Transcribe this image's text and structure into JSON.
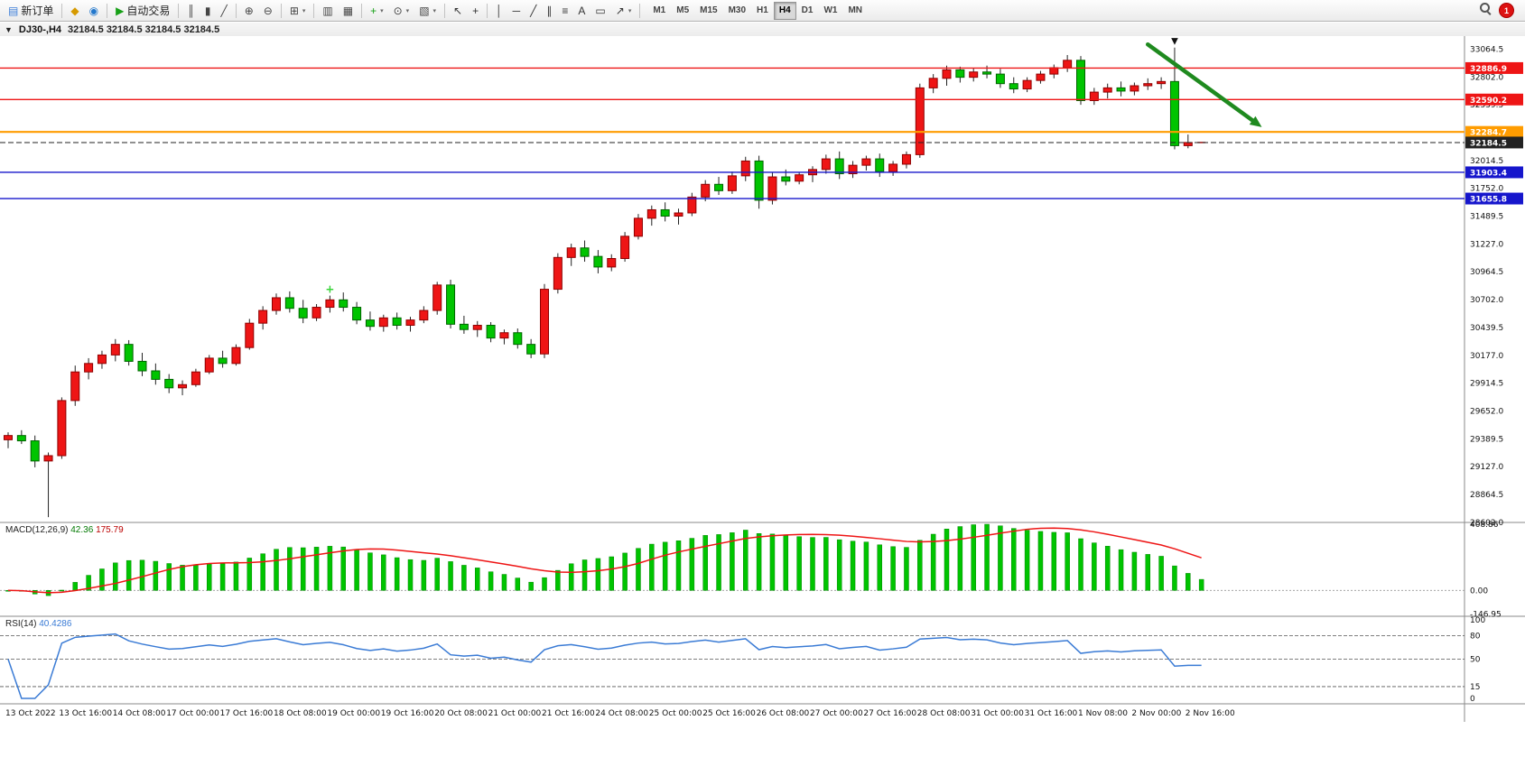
{
  "toolbar": {
    "left_items": [
      {
        "name": "new-order-button",
        "icon": "order-ticket-icon",
        "glyph": "▤",
        "glyph_color": "#3b7dd8",
        "label": "新订单"
      },
      {
        "sep": true
      },
      {
        "name": "alerts-button",
        "icon": "alert-icon",
        "glyph": "◆",
        "glyph_color": "#d69a00"
      },
      {
        "name": "community-button",
        "icon": "community-icon",
        "glyph": "◉",
        "glyph_color": "#2277cc"
      },
      {
        "sep": true
      },
      {
        "name": "autotrading-button",
        "icon": "play-icon",
        "glyph": "▶",
        "glyph_color": "#17a017",
        "label": "自动交易"
      },
      {
        "sep": true
      },
      {
        "name": "bar-chart-button",
        "icon": "bar-chart-icon",
        "glyph": "║",
        "glyph_color": "#444444"
      },
      {
        "name": "candlestick-chart-button",
        "icon": "candlestick-icon",
        "glyph": "▮",
        "glyph_color": "#444444"
      },
      {
        "name": "line-chart-button",
        "icon": "line-chart-icon",
        "glyph": "╱",
        "glyph_color": "#444444"
      },
      {
        "sep": true
      },
      {
        "name": "zoom-in-button",
        "icon": "zoom-in-icon",
        "glyph": "⊕",
        "glyph_color": "#444444"
      },
      {
        "name": "zoom-out-button",
        "icon": "zoom-out-icon",
        "glyph": "⊖",
        "glyph_color": "#444444"
      },
      {
        "sep": true
      },
      {
        "name": "tile-windows-button",
        "icon": "tile-windows-icon",
        "glyph": "⊞",
        "glyph_color": "#444444",
        "caret": true
      },
      {
        "sep": true
      },
      {
        "name": "arrange-charts-button",
        "icon": "arrange-icon",
        "glyph": "▥",
        "glyph_color": "#444444"
      },
      {
        "name": "cascade-charts-button",
        "icon": "cascade-icon",
        "glyph": "▦",
        "glyph_color": "#444444"
      },
      {
        "sep": true
      },
      {
        "name": "indicators-button",
        "icon": "indicator-plus-icon",
        "glyph": "+",
        "glyph_color": "#17a017",
        "caret": true
      },
      {
        "name": "periods-button",
        "icon": "clock-icon",
        "glyph": "⊙",
        "glyph_color": "#444444",
        "caret": true
      },
      {
        "name": "templates-button",
        "icon": "template-icon",
        "glyph": "▧",
        "glyph_color": "#444444",
        "caret": true
      },
      {
        "sep": true
      },
      {
        "name": "cursor-button",
        "icon": "cursor-icon",
        "glyph": "↖",
        "glyph_color": "#333333"
      },
      {
        "name": "crosshair-button",
        "icon": "crosshair-icon",
        "glyph": "+",
        "glyph_color": "#333333"
      },
      {
        "sep": true
      },
      {
        "name": "vertical-line-button",
        "icon": "vline-icon",
        "glyph": "│",
        "glyph_color": "#333333"
      },
      {
        "name": "horizontal-line-button",
        "icon": "hline-icon",
        "glyph": "─",
        "glyph_color": "#333333"
      },
      {
        "name": "trendline-button",
        "icon": "trendline-icon",
        "glyph": "╱",
        "glyph_color": "#333333"
      },
      {
        "name": "channel-button",
        "icon": "channel-icon",
        "glyph": "∥",
        "glyph_color": "#333333"
      },
      {
        "name": "fibonacci-button",
        "icon": "fibonacci-icon",
        "glyph": "≡",
        "glyph_color": "#333333"
      },
      {
        "name": "text-button",
        "icon": "text-icon",
        "glyph": "A",
        "glyph_color": "#333333"
      },
      {
        "name": "text-label-button",
        "icon": "text-label-icon",
        "glyph": "▭",
        "glyph_color": "#333333"
      },
      {
        "name": "arrows-button",
        "icon": "arrow-objects-icon",
        "glyph": "↗",
        "glyph_color": "#333333",
        "caret": true
      },
      {
        "sep": true
      }
    ],
    "timeframes": [
      "M1",
      "M5",
      "M15",
      "M30",
      "H1",
      "H4",
      "D1",
      "W1",
      "MN"
    ],
    "active_timeframe": "H4",
    "notification_count": "1"
  },
  "chart": {
    "title": {
      "one_click_glyph": "▼",
      "symbol_period": "DJ30-,H4",
      "ohlc": "32184.5 32184.5 32184.5 32184.5"
    },
    "colors": {
      "up": "#ee1515",
      "up_border": "#8e0000",
      "down": "#00c400",
      "down_border": "#006400",
      "wick": "#222222"
    },
    "price_axis": {
      "range_max": 33180,
      "range_min": 28600,
      "labels": [
        "33064.5",
        "32802.0",
        "32539.5",
        "32277.0",
        "32014.5",
        "31752.0",
        "31489.5",
        "31227.0",
        "30964.5",
        "30702.0",
        "30439.5",
        "30177.0",
        "29914.5",
        "29652.0",
        "29389.5",
        "29127.0",
        "28864.5",
        "28602.0"
      ]
    },
    "levels": [
      {
        "name": "resistance-line-upper",
        "price": 32886.9,
        "label": "32886.9",
        "color": "#ee1515",
        "width": 1.4
      },
      {
        "name": "resistance-line-lower",
        "price": 32590.2,
        "label": "32590.2",
        "color": "#ee1515",
        "width": 1.4
      },
      {
        "name": "pivot-line-orange",
        "price": 32284.7,
        "label": "32284.7",
        "color": "#ff9c00",
        "width": 2.2
      },
      {
        "name": "current-price-line",
        "price": 32184.5,
        "label": "32184.5",
        "color": "#222222",
        "width": 1,
        "dashed": true
      },
      {
        "name": "support-line-upper",
        "price": 31903.4,
        "label": "31903.4",
        "color": "#1616cc",
        "width": 1.4
      },
      {
        "name": "support-line-lower",
        "price": 31655.8,
        "label": "31655.8",
        "color": "#1616cc",
        "width": 1.4
      }
    ],
    "annotations": {
      "trend_arrow": {
        "from_candle": 85,
        "from_price": 33110,
        "to_candle": 93.5,
        "to_price": 32330,
        "color": "#1f8a1f"
      },
      "sell_marker": {
        "candle": 87,
        "price": 33150,
        "glyph": "▼",
        "color": "#111111"
      },
      "buy_marker": {
        "candle": 24,
        "price": 30800,
        "glyph": "+",
        "color": "#39d439"
      }
    }
  },
  "chart_data": {
    "type": "candlestick",
    "symbol": "DJ30-",
    "period": "H4",
    "candles": [
      [
        29380,
        29450,
        29300,
        29420
      ],
      [
        29420,
        29470,
        29340,
        29370
      ],
      [
        29370,
        29420,
        29120,
        29180
      ],
      [
        29180,
        29260,
        28650,
        29230
      ],
      [
        29230,
        29780,
        29200,
        29750
      ],
      [
        29750,
        30080,
        29700,
        30020
      ],
      [
        30020,
        30150,
        29950,
        30100
      ],
      [
        30100,
        30220,
        30050,
        30180
      ],
      [
        30180,
        30330,
        30120,
        30280
      ],
      [
        30280,
        30320,
        30080,
        30120
      ],
      [
        30120,
        30200,
        29980,
        30030
      ],
      [
        30030,
        30100,
        29900,
        29950
      ],
      [
        29950,
        30000,
        29820,
        29870
      ],
      [
        29870,
        29940,
        29800,
        29900
      ],
      [
        29900,
        30050,
        29880,
        30020
      ],
      [
        30020,
        30180,
        30000,
        30150
      ],
      [
        30150,
        30220,
        30060,
        30100
      ],
      [
        30100,
        30280,
        30080,
        30250
      ],
      [
        30250,
        30520,
        30230,
        30480
      ],
      [
        30480,
        30640,
        30420,
        30600
      ],
      [
        30600,
        30760,
        30560,
        30720
      ],
      [
        30720,
        30780,
        30580,
        30620
      ],
      [
        30620,
        30700,
        30480,
        30530
      ],
      [
        30530,
        30660,
        30500,
        30630
      ],
      [
        30630,
        30740,
        30580,
        30700
      ],
      [
        30700,
        30770,
        30590,
        30630
      ],
      [
        30630,
        30680,
        30470,
        30510
      ],
      [
        30510,
        30590,
        30410,
        30450
      ],
      [
        30450,
        30560,
        30400,
        30530
      ],
      [
        30530,
        30580,
        30420,
        30460
      ],
      [
        30460,
        30540,
        30400,
        30510
      ],
      [
        30510,
        30640,
        30480,
        30600
      ],
      [
        30600,
        30870,
        30560,
        30840
      ],
      [
        30840,
        30890,
        30430,
        30470
      ],
      [
        30470,
        30550,
        30380,
        30420
      ],
      [
        30420,
        30500,
        30350,
        30460
      ],
      [
        30460,
        30490,
        30300,
        30340
      ],
      [
        30340,
        30420,
        30280,
        30390
      ],
      [
        30390,
        30430,
        30240,
        30280
      ],
      [
        30280,
        30330,
        30150,
        30190
      ],
      [
        30190,
        30850,
        30150,
        30800
      ],
      [
        30800,
        31140,
        30760,
        31100
      ],
      [
        31100,
        31230,
        31020,
        31190
      ],
      [
        31190,
        31260,
        31060,
        31110
      ],
      [
        31110,
        31170,
        30950,
        31010
      ],
      [
        31010,
        31130,
        30970,
        31090
      ],
      [
        31090,
        31340,
        31060,
        31300
      ],
      [
        31300,
        31510,
        31270,
        31470
      ],
      [
        31470,
        31590,
        31400,
        31550
      ],
      [
        31550,
        31620,
        31440,
        31490
      ],
      [
        31490,
        31560,
        31410,
        31520
      ],
      [
        31520,
        31710,
        31490,
        31670
      ],
      [
        31670,
        31830,
        31630,
        31790
      ],
      [
        31790,
        31860,
        31690,
        31730
      ],
      [
        31730,
        31910,
        31700,
        31870
      ],
      [
        31870,
        32050,
        31820,
        32010
      ],
      [
        32010,
        32060,
        31560,
        31640
      ],
      [
        31640,
        31900,
        31600,
        31860
      ],
      [
        31860,
        31930,
        31780,
        31820
      ],
      [
        31820,
        31900,
        31790,
        31880
      ],
      [
        31880,
        31960,
        31810,
        31930
      ],
      [
        31930,
        32070,
        31890,
        32030
      ],
      [
        32030,
        32100,
        31840,
        31890
      ],
      [
        31890,
        32010,
        31850,
        31970
      ],
      [
        31970,
        32060,
        31920,
        32030
      ],
      [
        32030,
        32080,
        31860,
        31910
      ],
      [
        31910,
        32010,
        31870,
        31980
      ],
      [
        31980,
        32100,
        31940,
        32070
      ],
      [
        32070,
        32740,
        32040,
        32700
      ],
      [
        32700,
        32830,
        32650,
        32790
      ],
      [
        32790,
        32910,
        32720,
        32870
      ],
      [
        32870,
        32900,
        32750,
        32800
      ],
      [
        32800,
        32890,
        32760,
        32850
      ],
      [
        32850,
        32910,
        32790,
        32830
      ],
      [
        32830,
        32880,
        32700,
        32740
      ],
      [
        32740,
        32800,
        32650,
        32690
      ],
      [
        32690,
        32800,
        32660,
        32770
      ],
      [
        32770,
        32860,
        32740,
        32830
      ],
      [
        32830,
        32920,
        32790,
        32890
      ],
      [
        32890,
        33010,
        32850,
        32960
      ],
      [
        32960,
        33000,
        32540,
        32580
      ],
      [
        32580,
        32700,
        32540,
        32660
      ],
      [
        32660,
        32740,
        32600,
        32700
      ],
      [
        32700,
        32760,
        32620,
        32670
      ],
      [
        32670,
        32750,
        32630,
        32720
      ],
      [
        32720,
        32790,
        32680,
        32740
      ],
      [
        32740,
        32800,
        32690,
        32760
      ],
      [
        32760,
        33080,
        32120,
        32155
      ],
      [
        32155,
        32260,
        32130,
        32184.5
      ],
      [
        32184.5,
        32184.5,
        32184.5,
        32184.5
      ]
    ],
    "time_labels": [
      "13 Oct 2022",
      "13 Oct 16:00",
      "14 Oct 08:00",
      "17 Oct 00:00",
      "17 Oct 16:00",
      "18 Oct 08:00",
      "19 Oct 00:00",
      "19 Oct 16:00",
      "20 Oct 08:00",
      "21 Oct 00:00",
      "21 Oct 16:00",
      "24 Oct 08:00",
      "25 Oct 00:00",
      "25 Oct 16:00",
      "26 Oct 08:00",
      "27 Oct 00:00",
      "27 Oct 16:00",
      "28 Oct 08:00",
      "31 Oct 00:00",
      "31 Oct 16:00",
      "1 Nov 08:00",
      "2 Nov 00:00",
      "2 Nov 16:00"
    ],
    "macd": {
      "label": "MACD(12,26,9)",
      "value_main": "42.36",
      "value_signal": "175.79",
      "params": {
        "fast": 12,
        "slow": 26,
        "signal": 9
      },
      "axis_labels": [
        "408.86",
        "0.00",
        "-146.95"
      ],
      "range_max": 420,
      "range_min": -160,
      "hist_color": "#00c400",
      "signal_color": "#ee1515"
    },
    "rsi": {
      "label": "RSI(14)",
      "value": "40.4286",
      "period": 14,
      "axis_labels": [
        "100",
        "80",
        "50",
        "15",
        "0"
      ],
      "level_lines": [
        80,
        50,
        15
      ],
      "line_color": "#3a7bd5"
    }
  }
}
